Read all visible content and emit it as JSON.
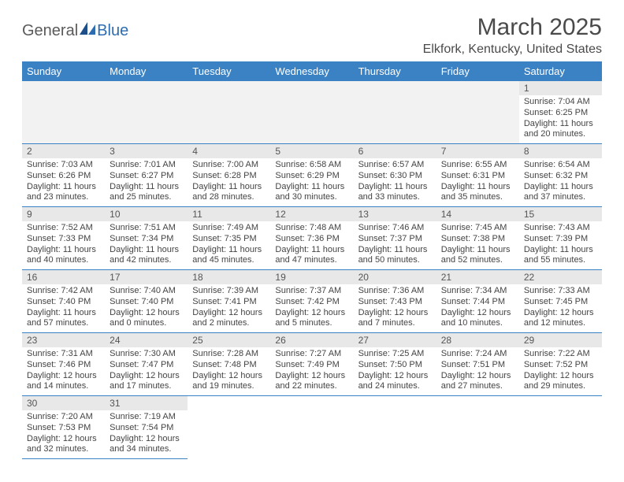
{
  "logo": {
    "part1": "General",
    "part2": "Blue"
  },
  "title": "March 2025",
  "location": "Elkfork, Kentucky, United States",
  "colors": {
    "header_bg": "#3b82c4",
    "header_fg": "#ffffff",
    "daynum_bg": "#e8e8e8",
    "border": "#3b82c4"
  },
  "weekdays": [
    "Sunday",
    "Monday",
    "Tuesday",
    "Wednesday",
    "Thursday",
    "Friday",
    "Saturday"
  ],
  "weeks": [
    [
      null,
      null,
      null,
      null,
      null,
      null,
      {
        "n": "1",
        "sr": "Sunrise: 7:04 AM",
        "ss": "Sunset: 6:25 PM",
        "d1": "Daylight: 11 hours",
        "d2": "and 20 minutes."
      }
    ],
    [
      {
        "n": "2",
        "sr": "Sunrise: 7:03 AM",
        "ss": "Sunset: 6:26 PM",
        "d1": "Daylight: 11 hours",
        "d2": "and 23 minutes."
      },
      {
        "n": "3",
        "sr": "Sunrise: 7:01 AM",
        "ss": "Sunset: 6:27 PM",
        "d1": "Daylight: 11 hours",
        "d2": "and 25 minutes."
      },
      {
        "n": "4",
        "sr": "Sunrise: 7:00 AM",
        "ss": "Sunset: 6:28 PM",
        "d1": "Daylight: 11 hours",
        "d2": "and 28 minutes."
      },
      {
        "n": "5",
        "sr": "Sunrise: 6:58 AM",
        "ss": "Sunset: 6:29 PM",
        "d1": "Daylight: 11 hours",
        "d2": "and 30 minutes."
      },
      {
        "n": "6",
        "sr": "Sunrise: 6:57 AM",
        "ss": "Sunset: 6:30 PM",
        "d1": "Daylight: 11 hours",
        "d2": "and 33 minutes."
      },
      {
        "n": "7",
        "sr": "Sunrise: 6:55 AM",
        "ss": "Sunset: 6:31 PM",
        "d1": "Daylight: 11 hours",
        "d2": "and 35 minutes."
      },
      {
        "n": "8",
        "sr": "Sunrise: 6:54 AM",
        "ss": "Sunset: 6:32 PM",
        "d1": "Daylight: 11 hours",
        "d2": "and 37 minutes."
      }
    ],
    [
      {
        "n": "9",
        "sr": "Sunrise: 7:52 AM",
        "ss": "Sunset: 7:33 PM",
        "d1": "Daylight: 11 hours",
        "d2": "and 40 minutes."
      },
      {
        "n": "10",
        "sr": "Sunrise: 7:51 AM",
        "ss": "Sunset: 7:34 PM",
        "d1": "Daylight: 11 hours",
        "d2": "and 42 minutes."
      },
      {
        "n": "11",
        "sr": "Sunrise: 7:49 AM",
        "ss": "Sunset: 7:35 PM",
        "d1": "Daylight: 11 hours",
        "d2": "and 45 minutes."
      },
      {
        "n": "12",
        "sr": "Sunrise: 7:48 AM",
        "ss": "Sunset: 7:36 PM",
        "d1": "Daylight: 11 hours",
        "d2": "and 47 minutes."
      },
      {
        "n": "13",
        "sr": "Sunrise: 7:46 AM",
        "ss": "Sunset: 7:37 PM",
        "d1": "Daylight: 11 hours",
        "d2": "and 50 minutes."
      },
      {
        "n": "14",
        "sr": "Sunrise: 7:45 AM",
        "ss": "Sunset: 7:38 PM",
        "d1": "Daylight: 11 hours",
        "d2": "and 52 minutes."
      },
      {
        "n": "15",
        "sr": "Sunrise: 7:43 AM",
        "ss": "Sunset: 7:39 PM",
        "d1": "Daylight: 11 hours",
        "d2": "and 55 minutes."
      }
    ],
    [
      {
        "n": "16",
        "sr": "Sunrise: 7:42 AM",
        "ss": "Sunset: 7:40 PM",
        "d1": "Daylight: 11 hours",
        "d2": "and 57 minutes."
      },
      {
        "n": "17",
        "sr": "Sunrise: 7:40 AM",
        "ss": "Sunset: 7:40 PM",
        "d1": "Daylight: 12 hours",
        "d2": "and 0 minutes."
      },
      {
        "n": "18",
        "sr": "Sunrise: 7:39 AM",
        "ss": "Sunset: 7:41 PM",
        "d1": "Daylight: 12 hours",
        "d2": "and 2 minutes."
      },
      {
        "n": "19",
        "sr": "Sunrise: 7:37 AM",
        "ss": "Sunset: 7:42 PM",
        "d1": "Daylight: 12 hours",
        "d2": "and 5 minutes."
      },
      {
        "n": "20",
        "sr": "Sunrise: 7:36 AM",
        "ss": "Sunset: 7:43 PM",
        "d1": "Daylight: 12 hours",
        "d2": "and 7 minutes."
      },
      {
        "n": "21",
        "sr": "Sunrise: 7:34 AM",
        "ss": "Sunset: 7:44 PM",
        "d1": "Daylight: 12 hours",
        "d2": "and 10 minutes."
      },
      {
        "n": "22",
        "sr": "Sunrise: 7:33 AM",
        "ss": "Sunset: 7:45 PM",
        "d1": "Daylight: 12 hours",
        "d2": "and 12 minutes."
      }
    ],
    [
      {
        "n": "23",
        "sr": "Sunrise: 7:31 AM",
        "ss": "Sunset: 7:46 PM",
        "d1": "Daylight: 12 hours",
        "d2": "and 14 minutes."
      },
      {
        "n": "24",
        "sr": "Sunrise: 7:30 AM",
        "ss": "Sunset: 7:47 PM",
        "d1": "Daylight: 12 hours",
        "d2": "and 17 minutes."
      },
      {
        "n": "25",
        "sr": "Sunrise: 7:28 AM",
        "ss": "Sunset: 7:48 PM",
        "d1": "Daylight: 12 hours",
        "d2": "and 19 minutes."
      },
      {
        "n": "26",
        "sr": "Sunrise: 7:27 AM",
        "ss": "Sunset: 7:49 PM",
        "d1": "Daylight: 12 hours",
        "d2": "and 22 minutes."
      },
      {
        "n": "27",
        "sr": "Sunrise: 7:25 AM",
        "ss": "Sunset: 7:50 PM",
        "d1": "Daylight: 12 hours",
        "d2": "and 24 minutes."
      },
      {
        "n": "28",
        "sr": "Sunrise: 7:24 AM",
        "ss": "Sunset: 7:51 PM",
        "d1": "Daylight: 12 hours",
        "d2": "and 27 minutes."
      },
      {
        "n": "29",
        "sr": "Sunrise: 7:22 AM",
        "ss": "Sunset: 7:52 PM",
        "d1": "Daylight: 12 hours",
        "d2": "and 29 minutes."
      }
    ],
    [
      {
        "n": "30",
        "sr": "Sunrise: 7:20 AM",
        "ss": "Sunset: 7:53 PM",
        "d1": "Daylight: 12 hours",
        "d2": "and 32 minutes."
      },
      {
        "n": "31",
        "sr": "Sunrise: 7:19 AM",
        "ss": "Sunset: 7:54 PM",
        "d1": "Daylight: 12 hours",
        "d2": "and 34 minutes."
      },
      null,
      null,
      null,
      null,
      null
    ]
  ]
}
